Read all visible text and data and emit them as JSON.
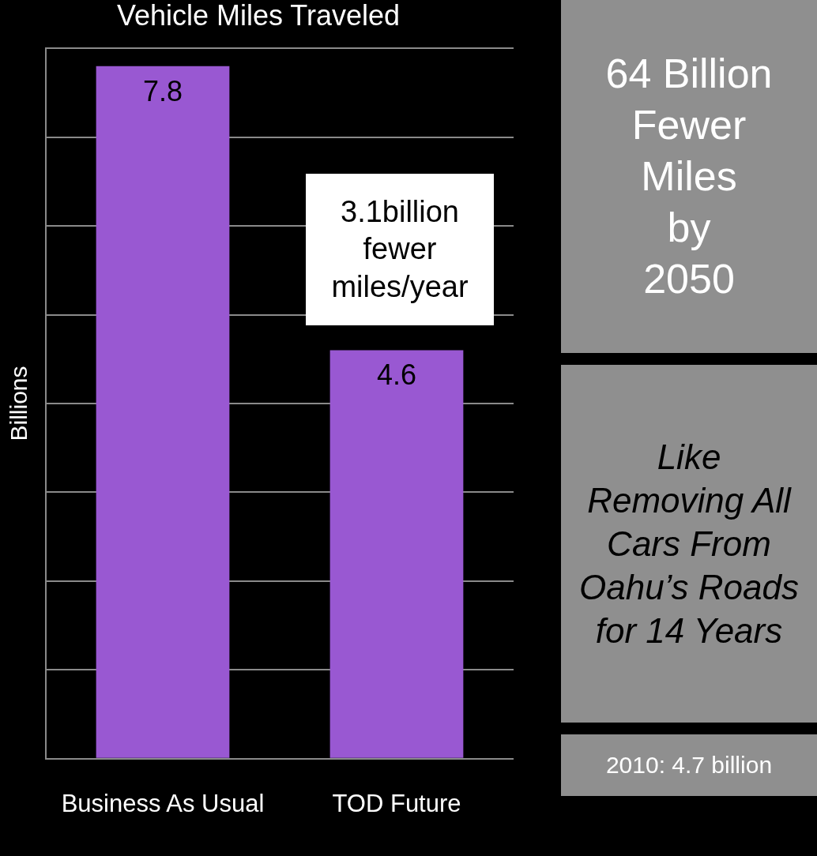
{
  "chart_data": {
    "type": "bar",
    "title": "Vehicle Miles Traveled",
    "ylabel": "Billions",
    "categories": [
      "Business As Usual",
      "TOD Future"
    ],
    "values": [
      7.8,
      4.6
    ],
    "color": "#9958d2",
    "ylim": [
      0,
      8
    ],
    "yticks": [
      {
        "value": 0,
        "label": null
      },
      {
        "value": 1,
        "label": null
      },
      {
        "value": 2,
        "label": null
      },
      {
        "value": 3,
        "label": null
      },
      {
        "value": 4,
        "label": null
      },
      {
        "value": 5,
        "label": null
      },
      {
        "value": 6,
        "label": null
      },
      {
        "value": 7,
        "label": null
      },
      {
        "value": 8,
        "label": null
      }
    ],
    "tick_labels": "x",
    "grid": "y",
    "legend": false,
    "data_labels": true,
    "annotations": [
      "3.1billion\nfewer\nmiles/year",
      "64 Billion\nFewer\nMiles\nby\n2050",
      "Like\nRemoving All\nCars From\nOahu’s Roads\nfor 14 Years",
      "2010: 4.7 billion"
    ]
  }
}
